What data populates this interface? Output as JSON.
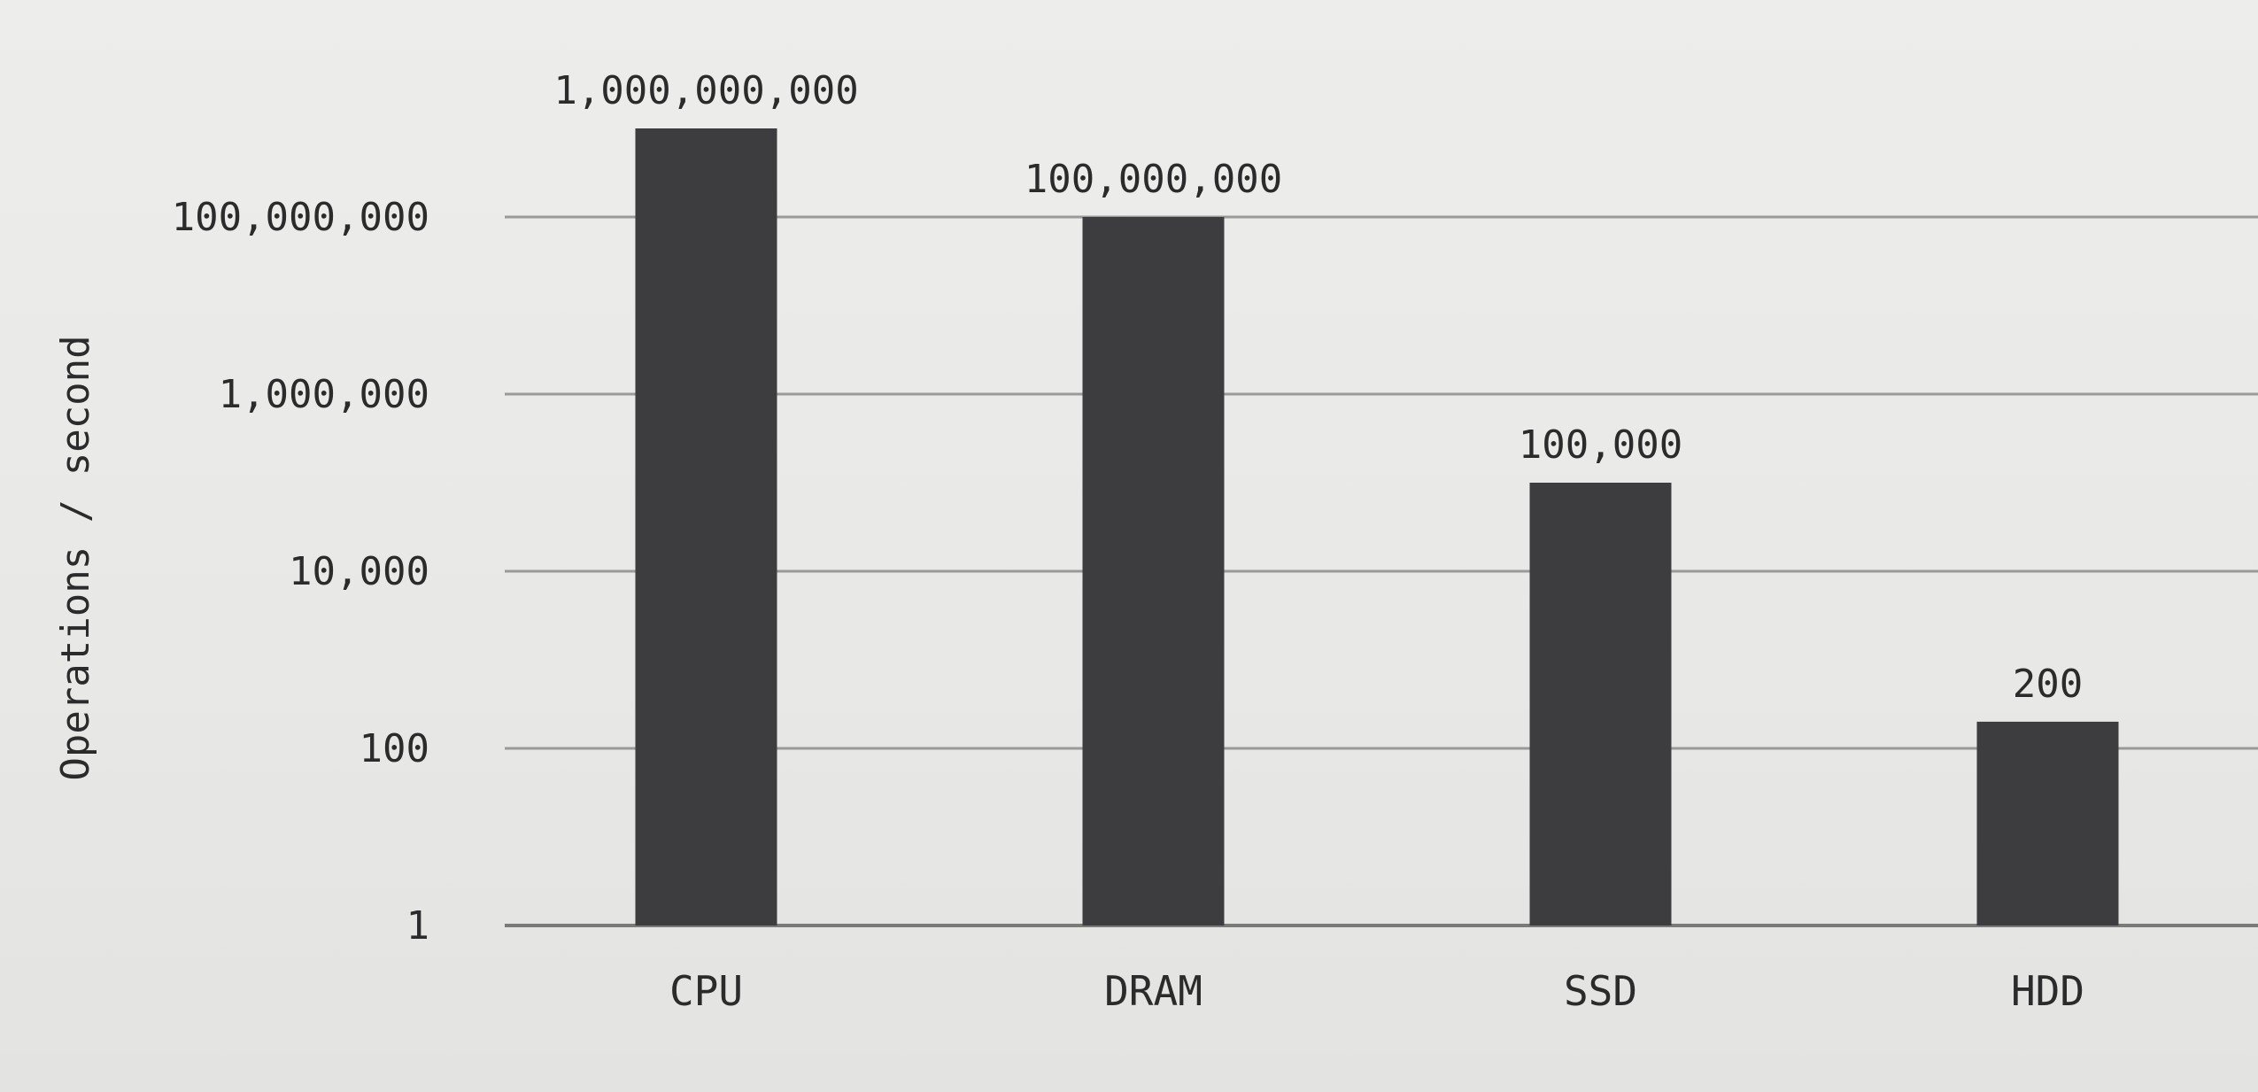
{
  "chart_data": {
    "type": "bar",
    "categories": [
      "CPU",
      "DRAM",
      "SSD",
      "HDD"
    ],
    "values": [
      1000000000,
      100000000,
      100000,
      200
    ],
    "data_labels": [
      "1,000,000,000",
      "100,000,000",
      "100,000",
      "200"
    ],
    "ylabel": "Operations / second",
    "yscale": "log",
    "ylim": [
      1,
      1000000000
    ],
    "yticks": [
      1,
      100,
      10000,
      1000000,
      100000000
    ],
    "ytick_labels": [
      "1",
      "100",
      "10,000",
      "1,000,000",
      "100,000,000"
    ],
    "grid": true,
    "bar_color": "#3d3d40"
  }
}
